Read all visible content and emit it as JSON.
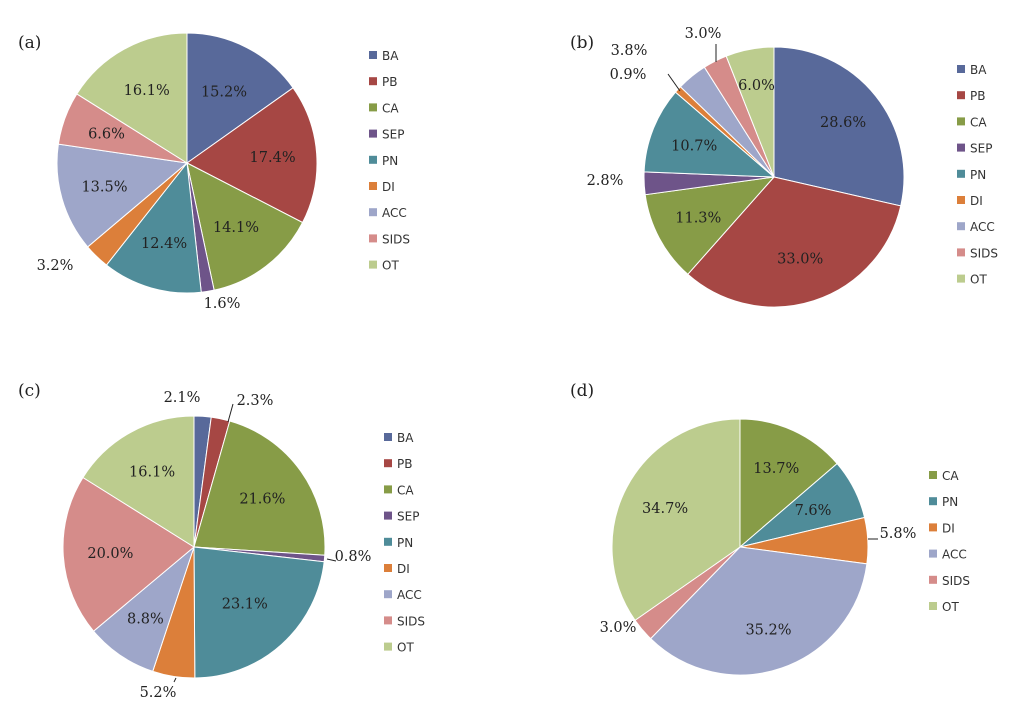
{
  "colors": {
    "BA": "#58699a",
    "PB": "#a64744",
    "CA": "#879c47",
    "SEP": "#6e5489",
    "PN": "#4f8c99",
    "DI": "#dc7f3a",
    "ACC": "#9ea6c9",
    "SIDS": "#d58c8a",
    "OT": "#bccc8e"
  },
  "chart_data": [
    {
      "type": "pie",
      "panel_label": "(a)",
      "categories": [
        "BA",
        "PB",
        "CA",
        "SEP",
        "PN",
        "DI",
        "ACC",
        "SIDS",
        "OT"
      ],
      "values": [
        15.2,
        17.4,
        14.1,
        1.6,
        12.4,
        3.2,
        13.5,
        6.6,
        16.1
      ],
      "data_labels": [
        "15.2%",
        "17.4%",
        "14.1%",
        "1.6%",
        "12.4%",
        "3.2%",
        "13.5%",
        "6.6%",
        "16.1%"
      ],
      "legend": [
        "BA",
        "PB",
        "CA",
        "SEP",
        "PN",
        "DI",
        "ACC",
        "SIDS",
        "OT"
      ],
      "legend_position": "right"
    },
    {
      "type": "pie",
      "panel_label": "(b)",
      "categories": [
        "BA",
        "PB",
        "CA",
        "SEP",
        "PN",
        "DI",
        "ACC",
        "SIDS",
        "OT"
      ],
      "values": [
        28.6,
        33.0,
        11.3,
        2.8,
        10.7,
        0.9,
        3.8,
        3.0,
        6.0
      ],
      "data_labels": [
        "28.6%",
        "33.0%",
        "11.3%",
        "2.8%",
        "10.7%",
        "0.9%",
        "3.8%",
        "3.0%",
        "6.0%"
      ],
      "legend": [
        "BA",
        "PB",
        "CA",
        "SEP",
        "PN",
        "DI",
        "ACC",
        "SIDS",
        "OT"
      ],
      "legend_position": "right"
    },
    {
      "type": "pie",
      "panel_label": "(c)",
      "categories": [
        "BA",
        "PB",
        "CA",
        "SEP",
        "PN",
        "DI",
        "ACC",
        "SIDS",
        "OT"
      ],
      "values": [
        2.1,
        2.3,
        21.6,
        0.8,
        23.1,
        5.2,
        8.8,
        20.0,
        16.1
      ],
      "data_labels": [
        "2.1%",
        "2.3%",
        "21.6%",
        "0.8%",
        "23.1%",
        "5.2%",
        "8.8%",
        "20.0%",
        "16.1%"
      ],
      "legend": [
        "BA",
        "PB",
        "CA",
        "SEP",
        "PN",
        "DI",
        "ACC",
        "SIDS",
        "OT"
      ],
      "legend_position": "right"
    },
    {
      "type": "pie",
      "panel_label": "(d)",
      "categories": [
        "CA",
        "PN",
        "DI",
        "ACC",
        "SIDS",
        "OT"
      ],
      "values": [
        13.7,
        7.6,
        5.8,
        35.2,
        3.0,
        34.7
      ],
      "data_labels": [
        "13.7%",
        "7.6%",
        "5.8%",
        "35.2%",
        "3.0%",
        "34.7%"
      ],
      "legend": [
        "CA",
        "PN",
        "DI",
        "ACC",
        "SIDS",
        "OT"
      ],
      "legend_position": "right"
    }
  ]
}
